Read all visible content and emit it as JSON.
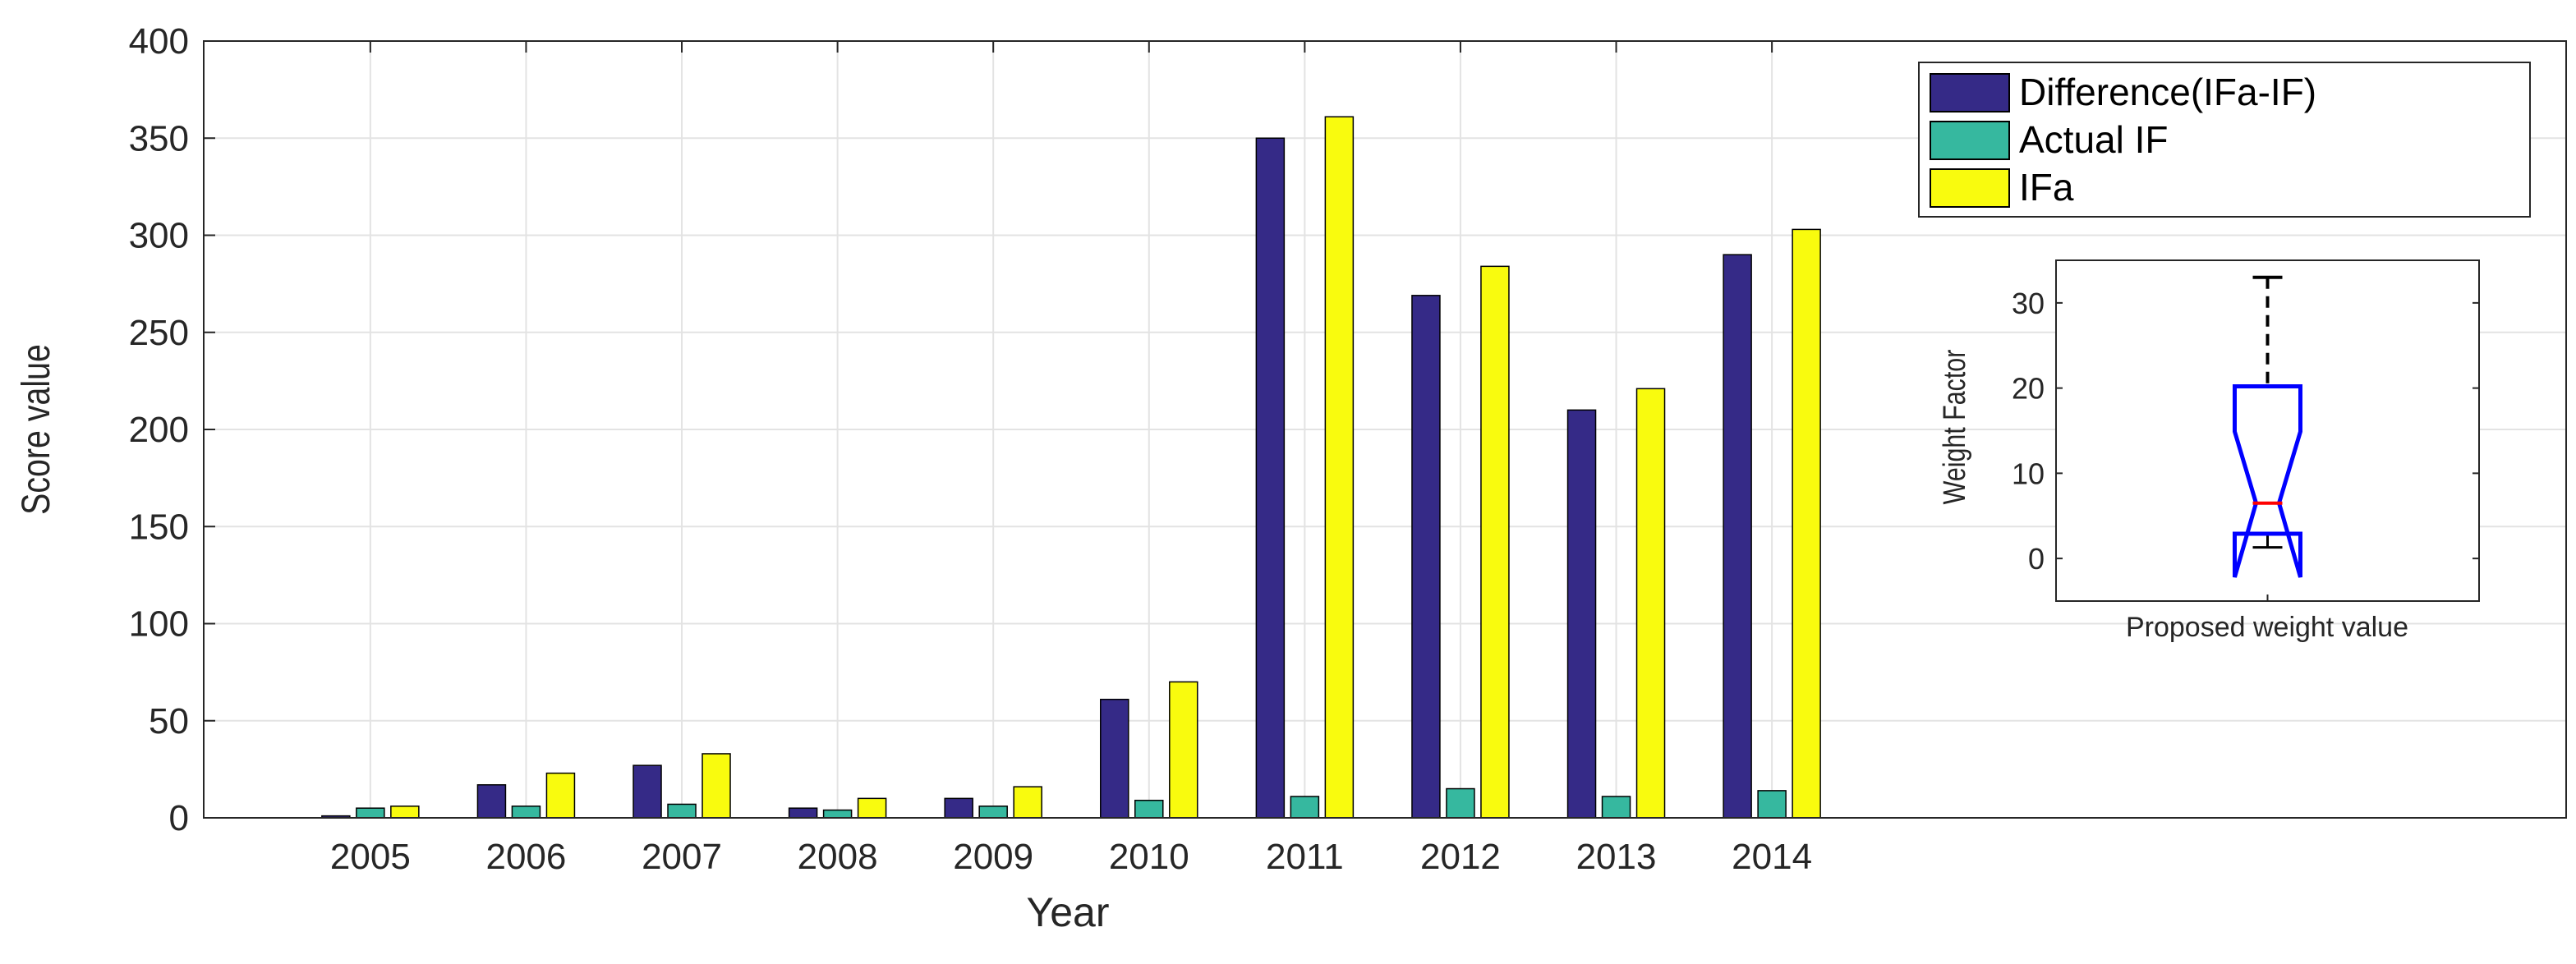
{
  "chart_data": [
    {
      "type": "bar",
      "title": "",
      "xlabel": "Year",
      "ylabel": "Score value",
      "categories": [
        "2005",
        "2006",
        "2007",
        "2008",
        "2009",
        "2010",
        "2011",
        "2012",
        "2013",
        "2014"
      ],
      "xlim": [
        2004,
        2019
      ],
      "ylim": [
        0,
        400
      ],
      "yticks": [
        0,
        50,
        100,
        150,
        200,
        250,
        300,
        350,
        400
      ],
      "grid": true,
      "legend_position": "top-right",
      "series": [
        {
          "name": "Difference(IFa-IF)",
          "color": "#352a87",
          "values": [
            1,
            17,
            27,
            5,
            10,
            61,
            350,
            269,
            210,
            290
          ]
        },
        {
          "name": "Actual IF",
          "color": "#36b89f",
          "values": [
            5,
            6,
            7,
            4,
            6,
            9,
            11,
            15,
            11,
            14
          ]
        },
        {
          "name": "IFa",
          "color": "#f9fb0e",
          "values": [
            6,
            23,
            33,
            10,
            16,
            70,
            361,
            284,
            221,
            303
          ]
        }
      ]
    },
    {
      "type": "boxplot",
      "title": "",
      "xlabel": "Proposed weight value",
      "ylabel": "Weight Factor",
      "ylim": [
        -5,
        35
      ],
      "yticks": [
        0,
        10,
        20,
        30
      ],
      "notched": true,
      "box": {
        "whisker_low": 1.3,
        "q1": 2.9,
        "median": 6.5,
        "q3": 20.2,
        "whisker_high": 33,
        "notch_low": -2.2,
        "notch_high": 14.9
      },
      "box_color": "#0000ff",
      "median_color": "#ff0000"
    }
  ]
}
